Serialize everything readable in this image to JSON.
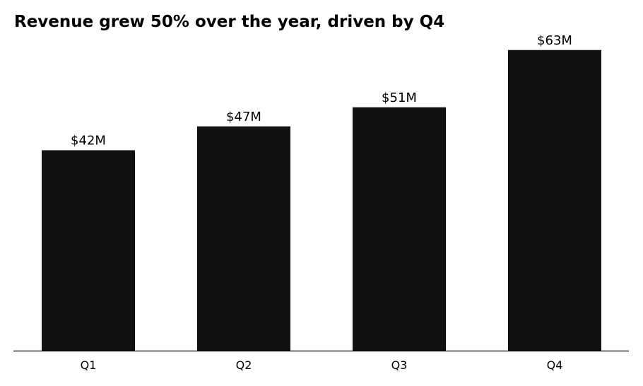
{
  "chart_data": {
    "type": "bar",
    "title": "Revenue grew 50% over the year, driven by Q4",
    "categories": [
      "Q1",
      "Q2",
      "Q3",
      "Q4"
    ],
    "values": [
      42,
      47,
      51,
      63
    ],
    "data_labels": [
      "$42M",
      "$47M",
      "$51M",
      "$63M"
    ],
    "xlabel": "",
    "ylabel": "",
    "ylim": [
      0,
      66
    ],
    "grid": false,
    "bar_color": "#111111",
    "axis_color": "#000000"
  }
}
